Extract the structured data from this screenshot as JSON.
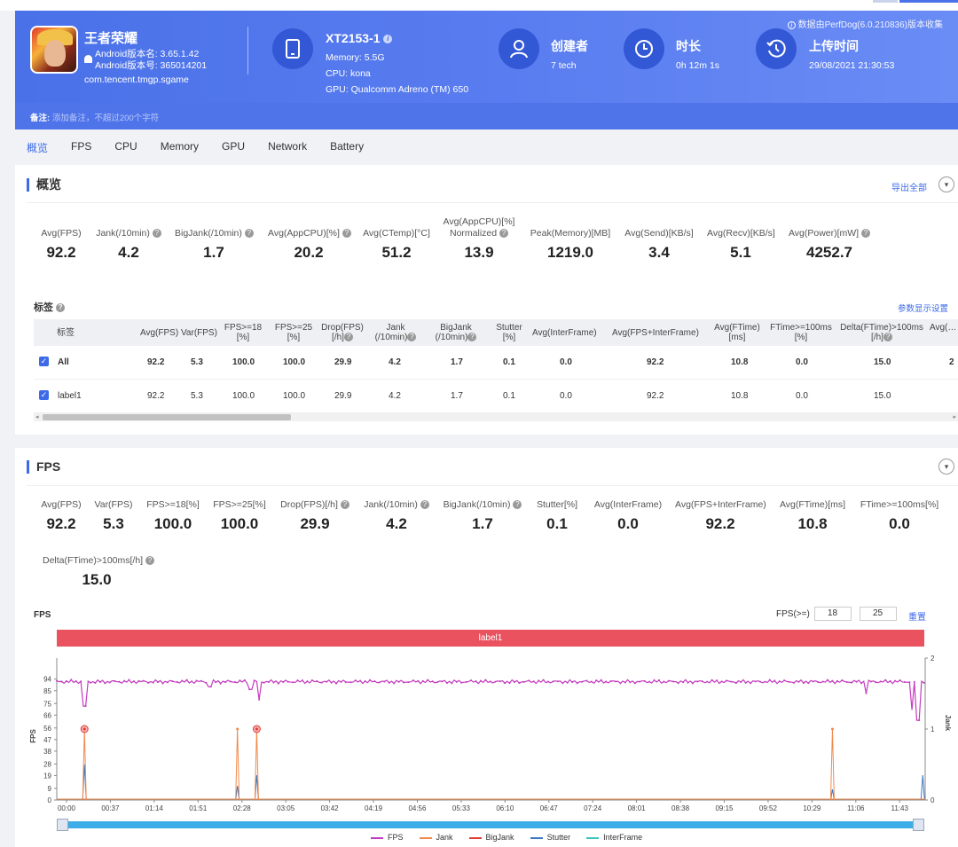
{
  "app": {
    "name": "王者荣耀",
    "android_version": "Android版本名: 3.65.1.42",
    "android_code": "Android版本号: 365014201",
    "package": "com.tencent.tmgp.sgame"
  },
  "device": {
    "name": "XT2153-1",
    "memory": "Memory: 5.5G",
    "cpu": "CPU: kona",
    "gpu": "GPU: Qualcomm Adreno (TM) 650"
  },
  "creator": {
    "label": "创建者",
    "value": "7 tech"
  },
  "duration": {
    "label": "时长",
    "value": "0h 12m 1s"
  },
  "upload": {
    "label": "上传时间",
    "value": "29/08/2021 21:30:53"
  },
  "data_source": "数据由PerfDog(6.0.210836)版本收集",
  "note": {
    "label": "备注:",
    "placeholder": "添加备注，不超过200个字符"
  },
  "tabs": [
    "概览",
    "FPS",
    "CPU",
    "Memory",
    "GPU",
    "Network",
    "Battery"
  ],
  "overview": {
    "title": "概览",
    "export": "导出全部",
    "stats": [
      {
        "label": "Avg(FPS)",
        "value": "92.2"
      },
      {
        "label": "Jank(/10min)",
        "value": "4.2"
      },
      {
        "label": "BigJank(/10min)",
        "value": "1.7"
      },
      {
        "label": "Avg(AppCPU)[%]",
        "value": "20.2"
      },
      {
        "label": "Avg(CTemp)[°C]",
        "value": "51.2"
      },
      {
        "label": "Avg(AppCPU)[%] Normalized",
        "value": "13.9"
      },
      {
        "label": "Peak(Memory)[MB]",
        "value": "1219.0"
      },
      {
        "label": "Avg(Send)[KB/s]",
        "value": "3.4"
      },
      {
        "label": "Avg(Recv)[KB/s]",
        "value": "5.1"
      },
      {
        "label": "Avg(Power)[mW]",
        "value": "4252.7"
      }
    ],
    "tag_title": "标签",
    "param_settings": "参数显示设置",
    "table": {
      "headers": [
        "标签",
        "Avg(FPS)",
        "Var(FPS)",
        "FPS>=18 [%]",
        "FPS>=25 [%]",
        "Drop(FPS) [/h]",
        "Jank (/10min)",
        "BigJank (/10min)",
        "Stutter [%]",
        "Avg(InterFrame)",
        "Avg(FPS+InterFrame)",
        "Avg(FTime) [ms]",
        "FTime>=100ms [%]",
        "Delta(FTime)>100ms [/h]",
        "Avg(…"
      ],
      "rows": [
        {
          "label": "All",
          "cells": [
            "92.2",
            "5.3",
            "100.0",
            "100.0",
            "29.9",
            "4.2",
            "1.7",
            "0.1",
            "0.0",
            "92.2",
            "10.8",
            "0.0",
            "15.0",
            "2"
          ]
        },
        {
          "label": "label1",
          "cells": [
            "92.2",
            "5.3",
            "100.0",
            "100.0",
            "29.9",
            "4.2",
            "1.7",
            "0.1",
            "0.0",
            "92.2",
            "10.8",
            "0.0",
            "15.0",
            ""
          ]
        }
      ]
    }
  },
  "fps": {
    "title": "FPS",
    "stats": [
      {
        "label": "Avg(FPS)",
        "value": "92.2"
      },
      {
        "label": "Var(FPS)",
        "value": "5.3"
      },
      {
        "label": "FPS>=18[%]",
        "value": "100.0"
      },
      {
        "label": "FPS>=25[%]",
        "value": "100.0"
      },
      {
        "label": "Drop(FPS)[/h]",
        "value": "29.9"
      },
      {
        "label": "Jank(/10min)",
        "value": "4.2"
      },
      {
        "label": "BigJank(/10min)",
        "value": "1.7"
      },
      {
        "label": "Stutter[%]",
        "value": "0.1"
      },
      {
        "label": "Avg(InterFrame)",
        "value": "0.0"
      },
      {
        "label": "Avg(FPS+InterFrame)",
        "value": "92.2"
      },
      {
        "label": "Avg(FTime)[ms]",
        "value": "10.8"
      },
      {
        "label": "FTime>=100ms[%]",
        "value": "0.0"
      },
      {
        "label": "Delta(FTime)>100ms[/h]",
        "value": "15.0"
      }
    ],
    "chart_title": "FPS",
    "threshold_label": "FPS(>=)",
    "threshold_1": "18",
    "threshold_2": "25",
    "reset": "重置",
    "label_bar": "label1"
  },
  "chart_data": {
    "type": "line",
    "ylabel": "FPS",
    "y2label": "Jank",
    "y_ticks": [
      0,
      9,
      19,
      28,
      38,
      47,
      56,
      66,
      75,
      85,
      94
    ],
    "y2_ticks": [
      0,
      1,
      2
    ],
    "x_ticks": [
      "00:00",
      "00:37",
      "01:14",
      "01:51",
      "02:28",
      "03:05",
      "03:42",
      "04:19",
      "04:56",
      "05:33",
      "06:10",
      "06:47",
      "07:24",
      "08:01",
      "08:38",
      "09:15",
      "09:52",
      "10:29",
      "11:06",
      "11:43"
    ],
    "xlim_seconds": [
      0,
      721
    ],
    "fps_baseline": 92,
    "fps_dips": [
      {
        "t": 23,
        "value": 73
      },
      {
        "t": 127,
        "value": 88
      },
      {
        "t": 161,
        "value": 86
      },
      {
        "t": 168,
        "value": 78
      },
      {
        "t": 672,
        "value": 83
      },
      {
        "t": 710,
        "value": 70
      },
      {
        "t": 715,
        "value": 62
      }
    ],
    "jank_events": [
      {
        "t": 23,
        "value": 1
      },
      {
        "t": 150,
        "value": 1
      },
      {
        "t": 166,
        "value": 1
      },
      {
        "t": 644,
        "value": 1
      }
    ],
    "bigjank_events": [
      {
        "t": 23,
        "value": 1
      },
      {
        "t": 166,
        "value": 1
      }
    ],
    "stutter_events": [
      {
        "t": 23,
        "value": 0.5
      },
      {
        "t": 150,
        "value": 0.2
      },
      {
        "t": 166,
        "value": 0.35
      },
      {
        "t": 644,
        "value": 0.15
      },
      {
        "t": 719,
        "value": 0.35
      }
    ],
    "series": [
      {
        "name": "FPS",
        "color": "#c43bbf"
      },
      {
        "name": "Jank",
        "color": "#f08a4b"
      },
      {
        "name": "BigJank",
        "color": "#e23b33"
      },
      {
        "name": "Stutter",
        "color": "#3b78c4"
      },
      {
        "name": "InterFrame",
        "color": "#3cc4c0"
      }
    ]
  }
}
